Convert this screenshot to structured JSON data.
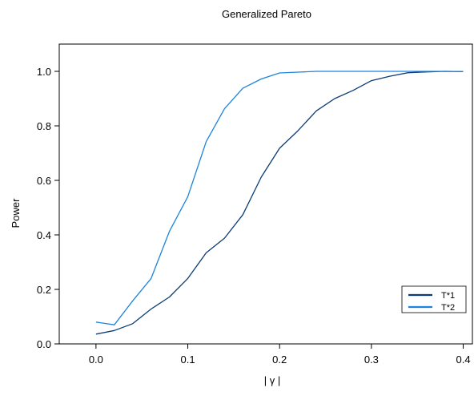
{
  "chart_data": {
    "type": "line",
    "title": "Generalized Pareto",
    "xlabel": "| γ |",
    "ylabel": "Power",
    "xlim": [
      -0.04,
      0.41
    ],
    "ylim": [
      0.0,
      1.1
    ],
    "x_ticks": [
      "0.0",
      "0.1",
      "0.2",
      "0.3",
      "0.4"
    ],
    "y_ticks": [
      "0.0",
      "0.2",
      "0.4",
      "0.6",
      "0.8",
      "1.0"
    ],
    "grid": false,
    "legend_position": "bottom-right",
    "x": [
      0.0,
      0.02,
      0.04,
      0.06,
      0.08,
      0.1,
      0.12,
      0.14,
      0.16,
      0.18,
      0.2,
      0.22,
      0.24,
      0.26,
      0.28,
      0.3,
      0.32,
      0.34,
      0.36,
      0.38,
      0.4
    ],
    "series": [
      {
        "name": "T*1",
        "color": "#0b3c73",
        "values": [
          0.036,
          0.049,
          0.074,
          0.128,
          0.172,
          0.24,
          0.334,
          0.388,
          0.474,
          0.612,
          0.718,
          0.782,
          0.855,
          0.9,
          0.93,
          0.966,
          0.982,
          0.995,
          0.998,
          1.0,
          0.999
        ]
      },
      {
        "name": "T*2",
        "color": "#1c83e0",
        "values": [
          0.08,
          0.07,
          0.158,
          0.24,
          0.413,
          0.54,
          0.742,
          0.863,
          0.938,
          0.972,
          0.994,
          0.997,
          1.0,
          1.0,
          1.0,
          1.0,
          1.0,
          1.0,
          1.0,
          1.0,
          0.999
        ]
      }
    ]
  }
}
